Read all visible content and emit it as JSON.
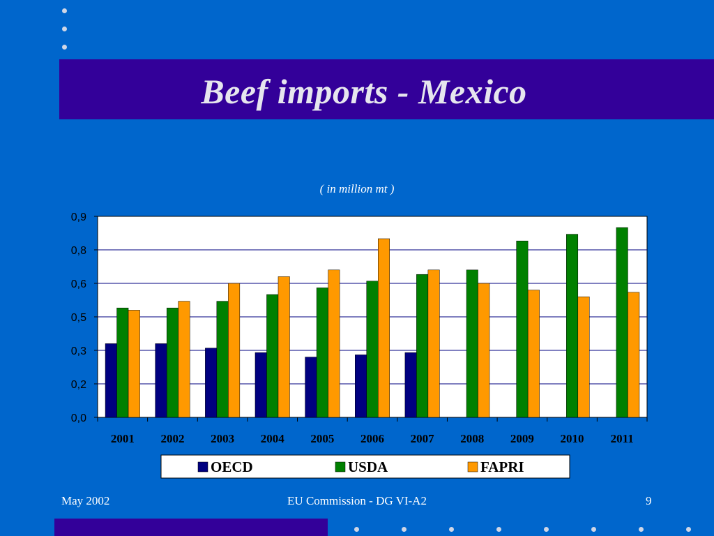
{
  "slide": {
    "title": "Beef imports - Mexico",
    "subtitle": "( in million mt )",
    "footer_left": "May 2002",
    "footer_center": "EU Commission - DG VI-A2",
    "footer_right": "9"
  },
  "colors": {
    "background": "#0066cc",
    "title_band": "#330099",
    "plot_area": "#ffffff",
    "gridlines": "#000080"
  },
  "chart_data": {
    "type": "bar",
    "title": "",
    "xlabel": "",
    "ylabel": "",
    "categories": [
      "2001",
      "2002",
      "2003",
      "2004",
      "2005",
      "2006",
      "2007",
      "2008",
      "2009",
      "2010",
      "2011"
    ],
    "yticks": [
      "0,0",
      "0,2",
      "0,3",
      "0,5",
      "0,6",
      "0,8",
      "0,9"
    ],
    "ylim": [
      0,
      0.9
    ],
    "grid": true,
    "legend_position": "bottom",
    "series": [
      {
        "name": "OECD",
        "color": "#000080",
        "values": [
          0.33,
          0.33,
          0.31,
          0.29,
          0.27,
          0.28,
          0.29,
          null,
          null,
          null,
          null
        ]
      },
      {
        "name": "USDA",
        "color": "#008000",
        "values": [
          0.49,
          0.49,
          0.52,
          0.55,
          0.58,
          0.61,
          0.64,
          0.66,
          0.79,
          0.82,
          0.85
        ]
      },
      {
        "name": "FAPRI",
        "color": "#ff9900",
        "values": [
          0.48,
          0.52,
          0.6,
          0.63,
          0.66,
          0.8,
          0.66,
          0.6,
          0.57,
          0.54,
          0.56
        ]
      }
    ]
  }
}
